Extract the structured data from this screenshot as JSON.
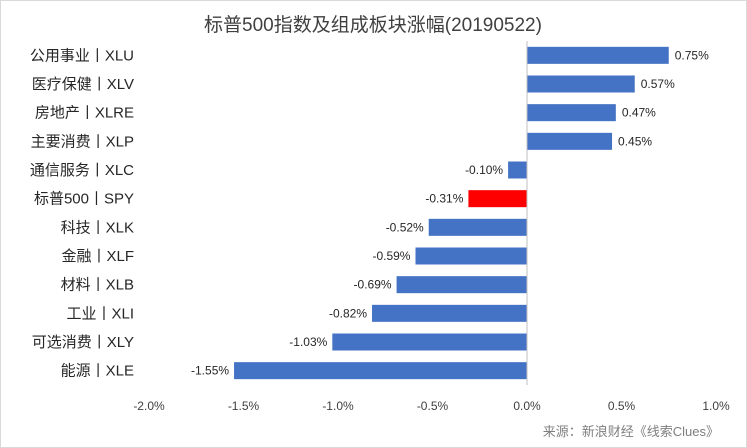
{
  "chart_data": {
    "type": "bar",
    "orientation": "horizontal",
    "title": "标普500指数及组成板块涨幅(20190522)",
    "categories": [
      "公用事业丨XLU",
      "医疗保健丨XLV",
      "房地产丨XLRE",
      "主要消费丨XLP",
      "通信服务丨XLC",
      "标普500丨SPY",
      "科技丨XLK",
      "金融丨XLF",
      "材料丨XLB",
      "工业丨XLI",
      "可选消费丨XLY",
      "能源丨XLE"
    ],
    "values": [
      0.75,
      0.57,
      0.47,
      0.45,
      -0.1,
      -0.31,
      -0.52,
      -0.59,
      -0.69,
      -0.82,
      -1.03,
      -1.55
    ],
    "value_labels": [
      "0.75%",
      "0.57%",
      "0.47%",
      "0.45%",
      "-0.10%",
      "-0.31%",
      "-0.52%",
      "-0.59%",
      "-0.69%",
      "-0.82%",
      "-1.03%",
      "-1.55%"
    ],
    "highlight_index": 5,
    "xlim": [
      -2.0,
      1.0
    ],
    "x_ticks": [
      -2.0,
      -1.5,
      -1.0,
      -0.5,
      0.0,
      0.5,
      1.0
    ],
    "x_tick_labels": [
      "-2.0%",
      "-1.5%",
      "-1.0%",
      "-0.5%",
      "0.0%",
      "0.5%",
      "1.0%"
    ],
    "xlabel": "",
    "ylabel": "",
    "grid": false,
    "legend": "none",
    "colors": {
      "bar": "#4472c4",
      "highlight": "#ff0000",
      "axis": "#bfbfbf"
    }
  },
  "source": "来源：新浪财经《线索Clues》"
}
